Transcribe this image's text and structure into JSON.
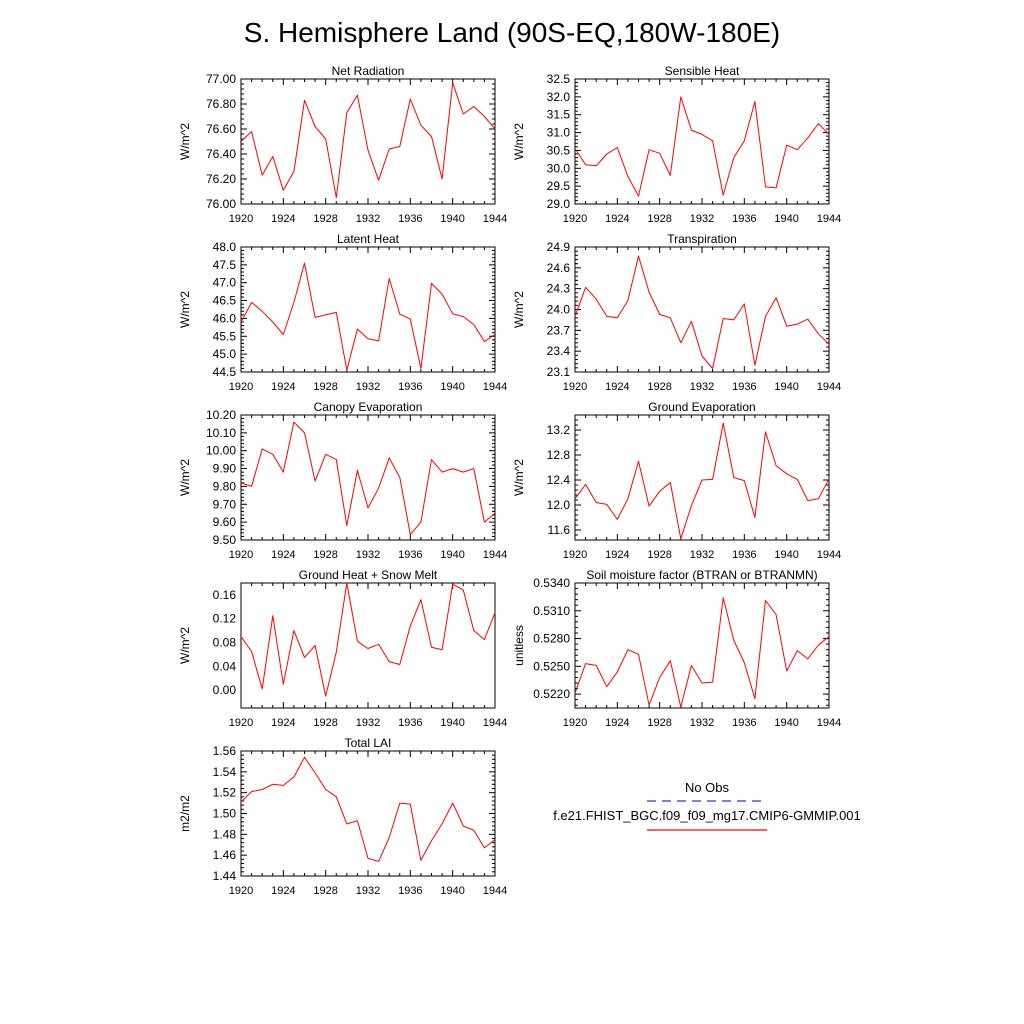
{
  "title": "S. Hemisphere Land (90S-EQ,180W-180E)",
  "legend": {
    "obs_label": "No Obs",
    "model_label": "f.e21.FHIST_BGC.f09_f09_mg17.CMIP6-GMMIP.001",
    "obs_color": "#3333cc",
    "model_color": "#ff0000"
  },
  "chart_data": [
    {
      "type": "line",
      "title": "Net Radiation",
      "xlabel": "",
      "ylabel": "W/m^2",
      "xlim": [
        1920,
        1944
      ],
      "ylim": [
        76.0,
        77.0
      ],
      "decimals": 2,
      "xticks": [
        1920,
        1924,
        1928,
        1932,
        1936,
        1940,
        1944
      ],
      "yticks": [
        76.0,
        76.2,
        76.4,
        76.6,
        76.8,
        77.0
      ],
      "x": [
        1920,
        1921,
        1922,
        1923,
        1924,
        1925,
        1926,
        1927,
        1928,
        1929,
        1930,
        1931,
        1932,
        1933,
        1934,
        1935,
        1936,
        1937,
        1938,
        1939,
        1940,
        1941,
        1942,
        1943,
        1944
      ],
      "series": [
        {
          "name": "f.e21.FHIST_BGC.f09_f09_mg17.CMIP6-GMMIP.001",
          "color": "#ff0000",
          "values": [
            76.5,
            76.58,
            76.23,
            76.38,
            76.11,
            76.26,
            76.83,
            76.62,
            76.52,
            76.05,
            76.73,
            76.87,
            76.43,
            76.19,
            76.44,
            76.46,
            76.84,
            76.63,
            76.54,
            76.2,
            76.97,
            76.72,
            76.78,
            76.7,
            76.6
          ]
        }
      ]
    },
    {
      "type": "line",
      "title": "Sensible Heat",
      "xlabel": "",
      "ylabel": "W/m^2",
      "xlim": [
        1920,
        1944
      ],
      "ylim": [
        29.0,
        32.5
      ],
      "decimals": 1,
      "xticks": [
        1920,
        1924,
        1928,
        1932,
        1936,
        1940,
        1944
      ],
      "yticks": [
        29.0,
        29.5,
        30.0,
        30.5,
        31.0,
        31.5,
        32.0,
        32.5
      ],
      "x": [
        1920,
        1921,
        1922,
        1923,
        1924,
        1925,
        1926,
        1927,
        1928,
        1929,
        1930,
        1931,
        1932,
        1933,
        1934,
        1935,
        1936,
        1937,
        1938,
        1939,
        1940,
        1941,
        1942,
        1943,
        1944
      ],
      "series": [
        {
          "name": "f.e21.FHIST_BGC.f09_f09_mg17.CMIP6-GMMIP.001",
          "color": "#ff0000",
          "values": [
            30.55,
            30.1,
            30.07,
            30.4,
            30.58,
            29.77,
            29.22,
            30.52,
            30.42,
            29.8,
            32.0,
            31.07,
            30.95,
            30.77,
            29.25,
            30.3,
            30.77,
            31.87,
            29.48,
            29.45,
            30.65,
            30.52,
            30.85,
            31.25,
            30.95
          ]
        }
      ]
    },
    {
      "type": "line",
      "title": "Latent Heat",
      "xlabel": "",
      "ylabel": "W/m^2",
      "xlim": [
        1920,
        1944
      ],
      "ylim": [
        44.5,
        48.0
      ],
      "decimals": 1,
      "xticks": [
        1920,
        1924,
        1928,
        1932,
        1936,
        1940,
        1944
      ],
      "yticks": [
        44.5,
        45.0,
        45.5,
        46.0,
        46.5,
        47.0,
        47.5,
        48.0
      ],
      "x": [
        1920,
        1921,
        1922,
        1923,
        1924,
        1925,
        1926,
        1927,
        1928,
        1929,
        1930,
        1931,
        1932,
        1933,
        1934,
        1935,
        1936,
        1937,
        1938,
        1939,
        1940,
        1941,
        1942,
        1943,
        1944
      ],
      "series": [
        {
          "name": "f.e21.FHIST_BGC.f09_f09_mg17.CMIP6-GMMIP.001",
          "color": "#ff0000",
          "values": [
            45.9,
            46.45,
            46.2,
            45.9,
            45.55,
            46.45,
            47.55,
            46.03,
            46.1,
            46.17,
            44.55,
            45.7,
            45.43,
            45.37,
            47.12,
            46.12,
            45.98,
            44.6,
            46.98,
            46.68,
            46.13,
            46.05,
            45.83,
            45.35,
            45.55
          ]
        }
      ]
    },
    {
      "type": "line",
      "title": "Transpiration",
      "xlabel": "",
      "ylabel": "W/m^2",
      "xlim": [
        1920,
        1944
      ],
      "ylim": [
        23.1,
        24.9
      ],
      "decimals": 1,
      "xticks": [
        1920,
        1924,
        1928,
        1932,
        1936,
        1940,
        1944
      ],
      "yticks": [
        23.1,
        23.4,
        23.7,
        24.0,
        24.3,
        24.6,
        24.9
      ],
      "x": [
        1920,
        1921,
        1922,
        1923,
        1924,
        1925,
        1926,
        1927,
        1928,
        1929,
        1930,
        1931,
        1932,
        1933,
        1934,
        1935,
        1936,
        1937,
        1938,
        1939,
        1940,
        1941,
        1942,
        1943,
        1944
      ],
      "series": [
        {
          "name": "f.e21.FHIST_BGC.f09_f09_mg17.CMIP6-GMMIP.001",
          "color": "#ff0000",
          "values": [
            23.9,
            24.32,
            24.15,
            23.9,
            23.88,
            24.13,
            24.77,
            24.25,
            23.93,
            23.88,
            23.52,
            23.83,
            23.33,
            23.15,
            23.87,
            23.85,
            24.08,
            23.2,
            23.9,
            24.17,
            23.76,
            23.79,
            23.86,
            23.65,
            23.5
          ]
        }
      ]
    },
    {
      "type": "line",
      "title": "Canopy Evaporation",
      "xlabel": "",
      "ylabel": "W/m^2",
      "xlim": [
        1920,
        1944
      ],
      "ylim": [
        9.5,
        10.2
      ],
      "decimals": 2,
      "xticks": [
        1920,
        1924,
        1928,
        1932,
        1936,
        1940,
        1944
      ],
      "yticks": [
        9.5,
        9.6,
        9.7,
        9.8,
        9.9,
        10.0,
        10.1,
        10.2
      ],
      "x": [
        1920,
        1921,
        1922,
        1923,
        1924,
        1925,
        1926,
        1927,
        1928,
        1929,
        1930,
        1931,
        1932,
        1933,
        1934,
        1935,
        1936,
        1937,
        1938,
        1939,
        1940,
        1941,
        1942,
        1943,
        1944
      ],
      "series": [
        {
          "name": "f.e21.FHIST_BGC.f09_f09_mg17.CMIP6-GMMIP.001",
          "color": "#ff0000",
          "values": [
            9.82,
            9.8,
            10.01,
            9.98,
            9.88,
            10.16,
            10.1,
            9.83,
            9.98,
            9.95,
            9.58,
            9.89,
            9.68,
            9.79,
            9.96,
            9.85,
            9.53,
            9.6,
            9.95,
            9.88,
            9.9,
            9.88,
            9.9,
            9.6,
            9.65
          ]
        }
      ]
    },
    {
      "type": "line",
      "title": "Ground Evaporation",
      "xlabel": "",
      "ylabel": "W/m^2",
      "xlim": [
        1920,
        1944
      ],
      "ylim": [
        11.44,
        13.44
      ],
      "decimals": 1,
      "xticks": [
        1920,
        1924,
        1928,
        1932,
        1936,
        1940,
        1944
      ],
      "yticks": [
        11.6,
        12.0,
        12.4,
        12.8,
        13.2
      ],
      "x": [
        1920,
        1921,
        1922,
        1923,
        1924,
        1925,
        1926,
        1927,
        1928,
        1929,
        1930,
        1931,
        1932,
        1933,
        1934,
        1935,
        1936,
        1937,
        1938,
        1939,
        1940,
        1941,
        1942,
        1943,
        1944
      ],
      "series": [
        {
          "name": "f.e21.FHIST_BGC.f09_f09_mg17.CMIP6-GMMIP.001",
          "color": "#ff0000",
          "values": [
            12.1,
            12.33,
            12.04,
            12.01,
            11.77,
            12.1,
            12.7,
            11.98,
            12.22,
            12.36,
            11.46,
            11.99,
            12.4,
            12.41,
            13.31,
            12.44,
            12.39,
            11.8,
            13.17,
            12.63,
            12.5,
            12.41,
            12.07,
            12.1,
            12.42
          ]
        }
      ]
    },
    {
      "type": "line",
      "title": "Ground Heat + Snow Melt",
      "xlabel": "",
      "ylabel": "W/m^2",
      "xlim": [
        1920,
        1944
      ],
      "ylim": [
        -0.03,
        0.18
      ],
      "decimals": 2,
      "xticks": [
        1920,
        1924,
        1928,
        1932,
        1936,
        1940,
        1944
      ],
      "yticks": [
        0.0,
        0.04,
        0.08,
        0.12,
        0.16
      ],
      "x": [
        1920,
        1921,
        1922,
        1923,
        1924,
        1925,
        1926,
        1927,
        1928,
        1929,
        1930,
        1931,
        1932,
        1933,
        1934,
        1935,
        1936,
        1937,
        1938,
        1939,
        1940,
        1941,
        1942,
        1943,
        1944
      ],
      "series": [
        {
          "name": "f.e21.FHIST_BGC.f09_f09_mg17.CMIP6-GMMIP.001",
          "color": "#ff0000",
          "values": [
            0.09,
            0.065,
            0.002,
            0.125,
            0.01,
            0.1,
            0.055,
            0.075,
            -0.01,
            0.064,
            0.18,
            0.082,
            0.07,
            0.077,
            0.048,
            0.043,
            0.108,
            0.152,
            0.072,
            0.068,
            0.178,
            0.168,
            0.1,
            0.085,
            0.13
          ]
        }
      ]
    },
    {
      "type": "line",
      "title": "Soil moisture factor (BTRAN or BTRANMN)",
      "xlabel": "",
      "ylabel": "unitless",
      "xlim": [
        1920,
        1944
      ],
      "ylim": [
        0.5205,
        0.534
      ],
      "decimals": 4,
      "xticks": [
        1920,
        1924,
        1928,
        1932,
        1936,
        1940,
        1944
      ],
      "yticks": [
        0.522,
        0.525,
        0.528,
        0.531,
        0.534
      ],
      "x": [
        1920,
        1921,
        1922,
        1923,
        1924,
        1925,
        1926,
        1927,
        1928,
        1929,
        1930,
        1931,
        1932,
        1933,
        1934,
        1935,
        1936,
        1937,
        1938,
        1939,
        1940,
        1941,
        1942,
        1943,
        1944
      ],
      "series": [
        {
          "name": "f.e21.FHIST_BGC.f09_f09_mg17.CMIP6-GMMIP.001",
          "color": "#ff0000",
          "values": [
            0.5221,
            0.5253,
            0.5251,
            0.5228,
            0.5244,
            0.5268,
            0.5263,
            0.5208,
            0.5238,
            0.5256,
            0.5206,
            0.5251,
            0.5232,
            0.5233,
            0.5324,
            0.5278,
            0.5254,
            0.5215,
            0.5321,
            0.5306,
            0.5245,
            0.5267,
            0.5258,
            0.5273,
            0.5282
          ]
        }
      ]
    },
    {
      "type": "line",
      "title": "Total LAI",
      "xlabel": "",
      "ylabel": "m2/m2",
      "xlim": [
        1920,
        1944
      ],
      "ylim": [
        1.44,
        1.56
      ],
      "decimals": 2,
      "xticks": [
        1920,
        1924,
        1928,
        1932,
        1936,
        1940,
        1944
      ],
      "yticks": [
        1.44,
        1.46,
        1.48,
        1.5,
        1.52,
        1.54,
        1.56
      ],
      "x": [
        1920,
        1921,
        1922,
        1923,
        1924,
        1925,
        1926,
        1927,
        1928,
        1929,
        1930,
        1931,
        1932,
        1933,
        1934,
        1935,
        1936,
        1937,
        1938,
        1939,
        1940,
        1941,
        1942,
        1943,
        1944
      ],
      "series": [
        {
          "name": "f.e21.FHIST_BGC.f09_f09_mg17.CMIP6-GMMIP.001",
          "color": "#ff0000",
          "values": [
            1.511,
            1.521,
            1.523,
            1.528,
            1.527,
            1.535,
            1.554,
            1.539,
            1.523,
            1.516,
            1.49,
            1.493,
            1.457,
            1.454,
            1.477,
            1.51,
            1.509,
            1.455,
            1.474,
            1.49,
            1.51,
            1.488,
            1.484,
            1.467,
            1.475
          ]
        }
      ]
    }
  ]
}
